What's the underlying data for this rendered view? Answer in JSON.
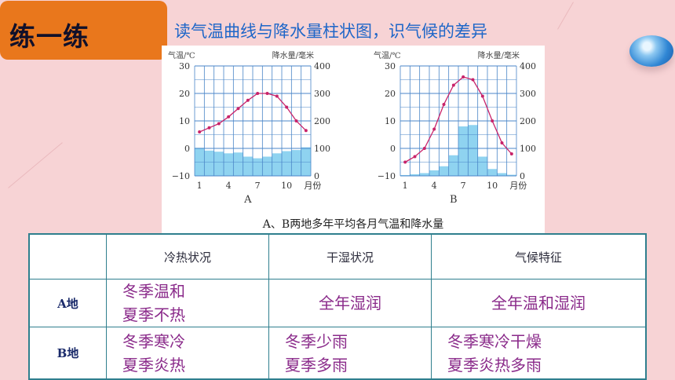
{
  "header": {
    "title": "练一练",
    "subtitle": "读气温曲线与降水量柱状图，识气候的差异"
  },
  "chart_caption": "A、B两地多年平均各月气温和降水量",
  "chart_data": [
    {
      "type": "bar+line",
      "name": "A",
      "y_left_label": "气温/℃",
      "y_right_label": "降水量/毫米",
      "x_ticks": [
        "1",
        "4",
        "7",
        "10",
        "月份"
      ],
      "temp_ticks": [
        "30",
        "20",
        "10",
        "0",
        "−10"
      ],
      "precip_ticks": [
        "400",
        "300",
        "200",
        "100",
        "0"
      ],
      "temp_range": [
        -10,
        30
      ],
      "precip_range": [
        0,
        400
      ],
      "months": [
        1,
        2,
        3,
        4,
        5,
        6,
        7,
        8,
        9,
        10,
        11,
        12
      ],
      "temperature": [
        6,
        7.5,
        9,
        11.5,
        14.5,
        17.5,
        20,
        20,
        19,
        15,
        10,
        6.5
      ],
      "precipitation": [
        102,
        92,
        88,
        82,
        85,
        70,
        64,
        70,
        82,
        90,
        94,
        104
      ]
    },
    {
      "type": "bar+line",
      "name": "B",
      "y_left_label": "气温/℃",
      "y_right_label": "降水量/毫米",
      "x_ticks": [
        "1",
        "4",
        "7",
        "10",
        "月份"
      ],
      "temp_ticks": [
        "30",
        "20",
        "10",
        "0",
        "−10"
      ],
      "precip_ticks": [
        "400",
        "300",
        "200",
        "100",
        "0"
      ],
      "temp_range": [
        -10,
        30
      ],
      "precip_range": [
        0,
        400
      ],
      "months": [
        1,
        2,
        3,
        4,
        5,
        6,
        7,
        8,
        9,
        10,
        11,
        12
      ],
      "temperature": [
        -5,
        -3,
        0,
        7,
        16,
        23,
        26,
        25,
        19,
        10,
        2,
        -2
      ],
      "precipitation": [
        3,
        6,
        10,
        20,
        35,
        75,
        180,
        185,
        70,
        25,
        10,
        4
      ]
    }
  ],
  "table": {
    "headers": [
      "",
      "冷热状况",
      "干湿状况",
      "气候特征"
    ],
    "rows": [
      {
        "label": "A地",
        "thermal": [
          "冬季温和",
          "夏季不热"
        ],
        "moisture": [
          "全年湿润"
        ],
        "climate": [
          "全年温和湿润"
        ]
      },
      {
        "label": "B地",
        "thermal": [
          "冬季寒冷",
          "夏季炎热"
        ],
        "moisture": [
          "冬季少雨",
          "夏季多雨"
        ],
        "climate": [
          "冬季寒冷干燥",
          "夏季炎热多雨"
        ]
      }
    ]
  },
  "colors": {
    "title_bg": "#e9771c",
    "subtitle": "#1e66c8",
    "bar": "#8fd3f0",
    "line": "#c8236a",
    "grid": "#4a86c8",
    "answer": "#8a2a8a"
  }
}
